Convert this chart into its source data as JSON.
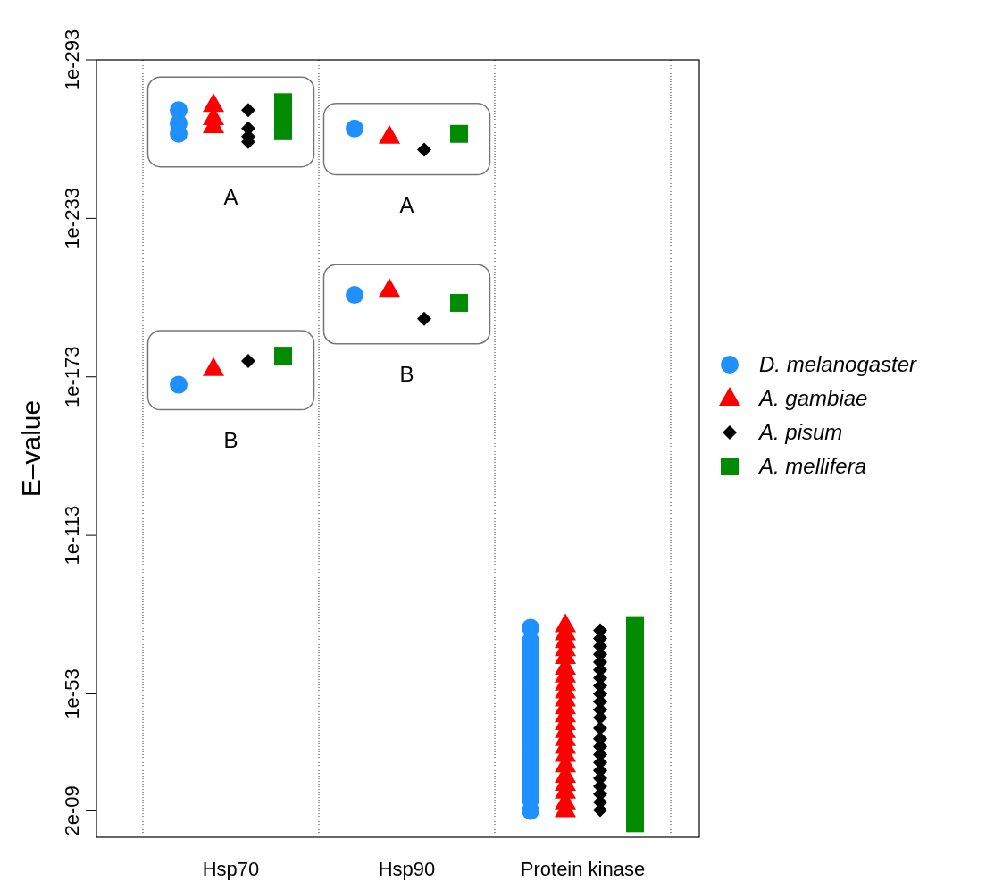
{
  "chart_data": {
    "type": "scatter",
    "ylabel": "E–value",
    "categories": [
      "Hsp70",
      "Hsp90",
      "Protein kinase"
    ],
    "log": "y",
    "ylim": [
      20,
      1e-293
    ],
    "yticks": [
      {
        "value": 2e-09,
        "label": "2e-09"
      },
      {
        "value": 1e-53,
        "label": "1e-53"
      },
      {
        "value": 1e-113,
        "label": "1e-113"
      },
      {
        "value": 1e-173,
        "label": "1e-173"
      },
      {
        "value": 1e-233,
        "label": "1e-233"
      },
      {
        "value": 1e-293,
        "label": "1e-293"
      }
    ],
    "grid": "x",
    "legend": "right",
    "series": [
      {
        "name": "D. melanogaster",
        "color": "#1e90ff",
        "marker": "circle",
        "x": [
          "Hsp70",
          "Hsp70",
          "Hsp70",
          "Hsp70",
          "Hsp90",
          "Hsp90",
          "Protein kinase",
          "Protein kinase",
          "Protein kinase",
          "Protein kinase",
          "Protein kinase",
          "Protein kinase",
          "Protein kinase",
          "Protein kinase",
          "Protein kinase",
          "Protein kinase",
          "Protein kinase",
          "Protein kinase",
          "Protein kinase",
          "Protein kinase",
          "Protein kinase",
          "Protein kinase",
          "Protein kinase",
          "Protein kinase",
          "Protein kinase",
          "Protein kinase",
          "Protein kinase",
          "Protein kinase",
          "Protein kinase"
        ],
        "values": [
          1e-274,
          1e-269,
          1e-265,
          1e-170,
          1e-267,
          1e-204,
          1e-78,
          1e-73,
          1e-70,
          1e-67,
          1e-64,
          1e-61,
          1e-58,
          1e-55,
          1e-52,
          1e-49,
          1e-46,
          1e-43,
          1e-40,
          1e-37,
          1e-34,
          1e-31,
          1e-28,
          1e-25,
          1e-22,
          1e-19,
          1e-16,
          1e-13,
          2e-09
        ]
      },
      {
        "name": "A. gambiae",
        "color": "#ff0000",
        "marker": "triangle",
        "x": [
          "Hsp70",
          "Hsp70",
          "Hsp70",
          "Hsp70",
          "Hsp90",
          "Hsp90",
          "Protein kinase",
          "Protein kinase",
          "Protein kinase",
          "Protein kinase",
          "Protein kinase",
          "Protein kinase",
          "Protein kinase",
          "Protein kinase",
          "Protein kinase",
          "Protein kinase",
          "Protein kinase",
          "Protein kinase",
          "Protein kinase",
          "Protein kinase",
          "Protein kinase",
          "Protein kinase",
          "Protein kinase",
          "Protein kinase",
          "Protein kinase",
          "Protein kinase",
          "Protein kinase",
          "Protein kinase",
          "Protein kinase"
        ],
        "values": [
          1e-276,
          1e-271,
          1e-268,
          1e-176,
          1e-264,
          1e-206,
          1e-79,
          1e-76,
          1e-73,
          1e-70,
          1e-67,
          1e-63,
          1e-60,
          1e-57,
          1e-54,
          1e-51,
          1e-48,
          1e-45,
          1e-42,
          1e-39,
          1e-36,
          1e-33,
          1e-30,
          1e-26,
          1e-22,
          1e-19,
          1e-16,
          1e-12,
          1e-09
        ]
      },
      {
        "name": "A. pisum",
        "color": "#000000",
        "marker": "diamond",
        "x": [
          "Hsp70",
          "Hsp70",
          "Hsp70",
          "Hsp70",
          "Hsp70",
          "Hsp90",
          "Hsp90",
          "Protein kinase",
          "Protein kinase",
          "Protein kinase",
          "Protein kinase",
          "Protein kinase",
          "Protein kinase",
          "Protein kinase",
          "Protein kinase",
          "Protein kinase",
          "Protein kinase",
          "Protein kinase",
          "Protein kinase",
          "Protein kinase",
          "Protein kinase",
          "Protein kinase",
          "Protein kinase",
          "Protein kinase",
          "Protein kinase",
          "Protein kinase",
          "Protein kinase",
          "Protein kinase",
          "Protein kinase",
          "Protein kinase"
        ],
        "values": [
          1e-274,
          1e-267,
          1e-264,
          1e-262,
          1e-179,
          1e-259,
          1e-195,
          1e-77,
          1e-74,
          1e-71,
          1e-68,
          1e-65,
          1e-62,
          1e-59,
          1e-56,
          1e-53,
          1e-50,
          1e-47,
          1e-44,
          1e-40,
          1e-36,
          1e-33,
          1e-30,
          1e-27,
          1e-24,
          1e-21,
          1e-18,
          1e-15,
          1e-12,
          1e-09
        ]
      },
      {
        "name": "A. mellifera",
        "color": "#008b00",
        "marker": "square",
        "x": [
          "Hsp70",
          "Hsp70",
          "Hsp70",
          "Hsp70",
          "Hsp90",
          "Hsp90",
          "Protein kinase",
          "Protein kinase",
          "Protein kinase",
          "Protein kinase",
          "Protein kinase",
          "Protein kinase",
          "Protein kinase",
          "Protein kinase",
          "Protein kinase",
          "Protein kinase",
          "Protein kinase",
          "Protein kinase",
          "Protein kinase",
          "Protein kinase",
          "Protein kinase",
          "Protein kinase",
          "Protein kinase",
          "Protein kinase",
          "Protein kinase"
        ],
        "values": [
          1e-277,
          1e-272,
          1e-266,
          1e-181,
          1e-265,
          1e-201,
          1e-79,
          1e-75,
          1e-71,
          1e-67,
          1e-63,
          1e-59,
          1e-55,
          1e-51,
          1e-47,
          1e-43,
          1e-39,
          1e-35,
          1e-31,
          1e-27,
          1e-23,
          1e-19,
          1e-14,
          1e-09,
          0.0001
        ]
      }
    ],
    "annotations": [
      "A",
      "B",
      "A",
      "B"
    ]
  }
}
